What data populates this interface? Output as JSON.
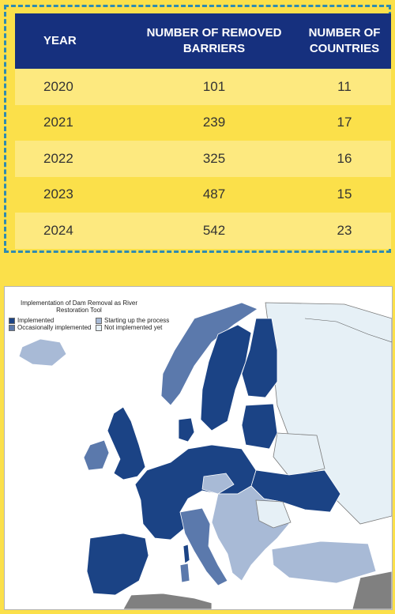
{
  "table": {
    "headers": {
      "year": "YEAR",
      "removed": "NUMBER OF REMOVED BARRIERS",
      "countries": "NUMBER OF COUNTRIES"
    },
    "rows": [
      {
        "year": "2020",
        "removed": "101",
        "countries": "11"
      },
      {
        "year": "2021",
        "removed": "239",
        "countries": "17"
      },
      {
        "year": "2022",
        "removed": "325",
        "countries": "16"
      },
      {
        "year": "2023",
        "removed": "487",
        "countries": "15"
      },
      {
        "year": "2024",
        "removed": "542",
        "countries": "23"
      }
    ]
  },
  "map": {
    "legend": {
      "title": "Implementation of Dam Removal as River Restoration Tool",
      "items": [
        {
          "label": "Implemented",
          "color": "#1b4385"
        },
        {
          "label": "Starting up the process",
          "color": "#a8bad6"
        },
        {
          "label": "Occasionally implemented",
          "color": "#5b79ac"
        },
        {
          "label": "Not implemented yet",
          "color": "#e6f0f6"
        }
      ]
    },
    "colors": {
      "implemented": "#1b4385",
      "occasional": "#5b79ac",
      "starting": "#a8bad6",
      "not_implemented": "#e6f0f6",
      "non_europe": "#808080"
    }
  }
}
